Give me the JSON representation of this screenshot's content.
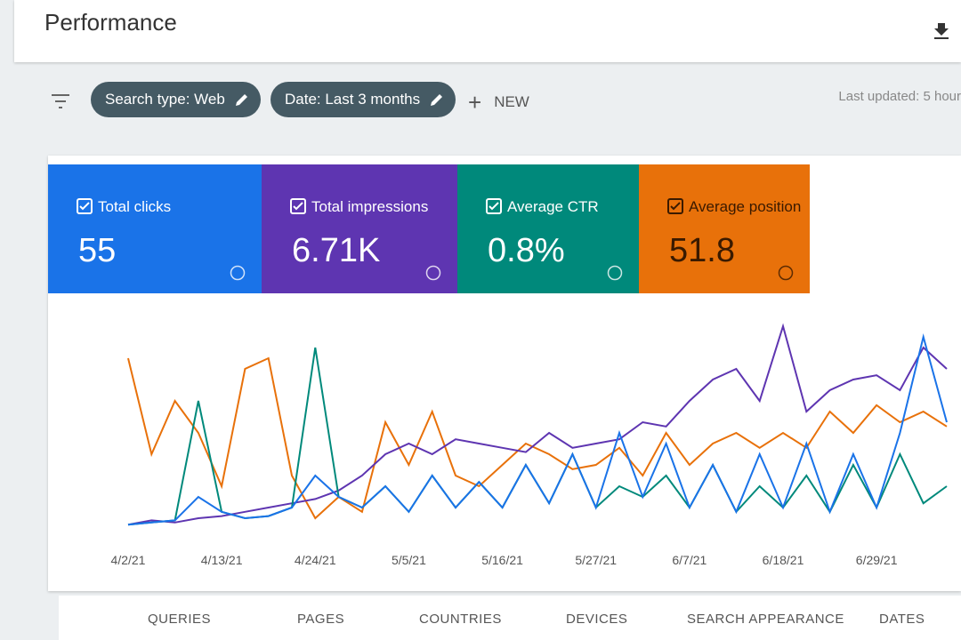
{
  "header": {
    "title": "Performance"
  },
  "filters": {
    "chips": [
      "Search type: Web",
      "Date: Last 3 months"
    ],
    "new": "NEW",
    "updated": "Last updated: 5 hour"
  },
  "metrics": [
    {
      "label": "Total clicks",
      "value": "55",
      "color": "#1a73e8"
    },
    {
      "label": "Total impressions",
      "value": "6.71K",
      "color": "#5e35b1"
    },
    {
      "label": "Average CTR",
      "value": "0.8%",
      "color": "#00897b"
    },
    {
      "label": "Average position",
      "value": "51.8",
      "color": "#e8710a"
    }
  ],
  "chart_data": {
    "type": "line",
    "categories": [
      "4/2/21",
      null,
      null,
      null,
      "4/13/21",
      null,
      null,
      null,
      "4/24/21",
      null,
      null,
      null,
      "5/5/21",
      null,
      null,
      null,
      "5/16/21",
      null,
      null,
      null,
      "5/27/21",
      null,
      null,
      null,
      "6/7/21",
      null,
      null,
      null,
      "6/18/21",
      null,
      null,
      null,
      "6/29/21",
      null,
      null,
      null
    ],
    "ylim": [
      0,
      100
    ],
    "series": [
      {
        "name": "Average position",
        "color": "#e8710a",
        "values": [
          80,
          35,
          60,
          45,
          20,
          75,
          80,
          25,
          5,
          15,
          8,
          50,
          30,
          55,
          25,
          20,
          30,
          40,
          35,
          28,
          30,
          38,
          25,
          45,
          30,
          40,
          45,
          38,
          45,
          38,
          55,
          45,
          58,
          50,
          55,
          48
        ]
      },
      {
        "name": "Total impressions",
        "color": "#5e35b1",
        "values": [
          2,
          4,
          3,
          5,
          6,
          8,
          10,
          12,
          14,
          18,
          25,
          35,
          40,
          35,
          42,
          40,
          38,
          36,
          45,
          38,
          40,
          42,
          50,
          48,
          60,
          70,
          75,
          60,
          95,
          55,
          65,
          70,
          72,
          65,
          85,
          75
        ]
      },
      {
        "name": "Average CTR",
        "color": "#00897b",
        "values": [
          2,
          3,
          4,
          60,
          8,
          5,
          6,
          10,
          85,
          15,
          10,
          20,
          8,
          25,
          10,
          22,
          10,
          30,
          12,
          35,
          10,
          20,
          15,
          25,
          10,
          30,
          8,
          20,
          10,
          25,
          8,
          30,
          10,
          35,
          12,
          20
        ]
      },
      {
        "name": "Total clicks",
        "color": "#1a73e8",
        "values": [
          2,
          3,
          4,
          15,
          8,
          5,
          6,
          10,
          25,
          15,
          10,
          20,
          8,
          25,
          10,
          22,
          10,
          30,
          12,
          35,
          10,
          45,
          15,
          40,
          10,
          30,
          8,
          35,
          10,
          40,
          8,
          35,
          10,
          45,
          90,
          50
        ]
      }
    ]
  },
  "tabs": [
    "QUERIES",
    "PAGES",
    "COUNTRIES",
    "DEVICES",
    "SEARCH APPEARANCE",
    "DATES"
  ]
}
